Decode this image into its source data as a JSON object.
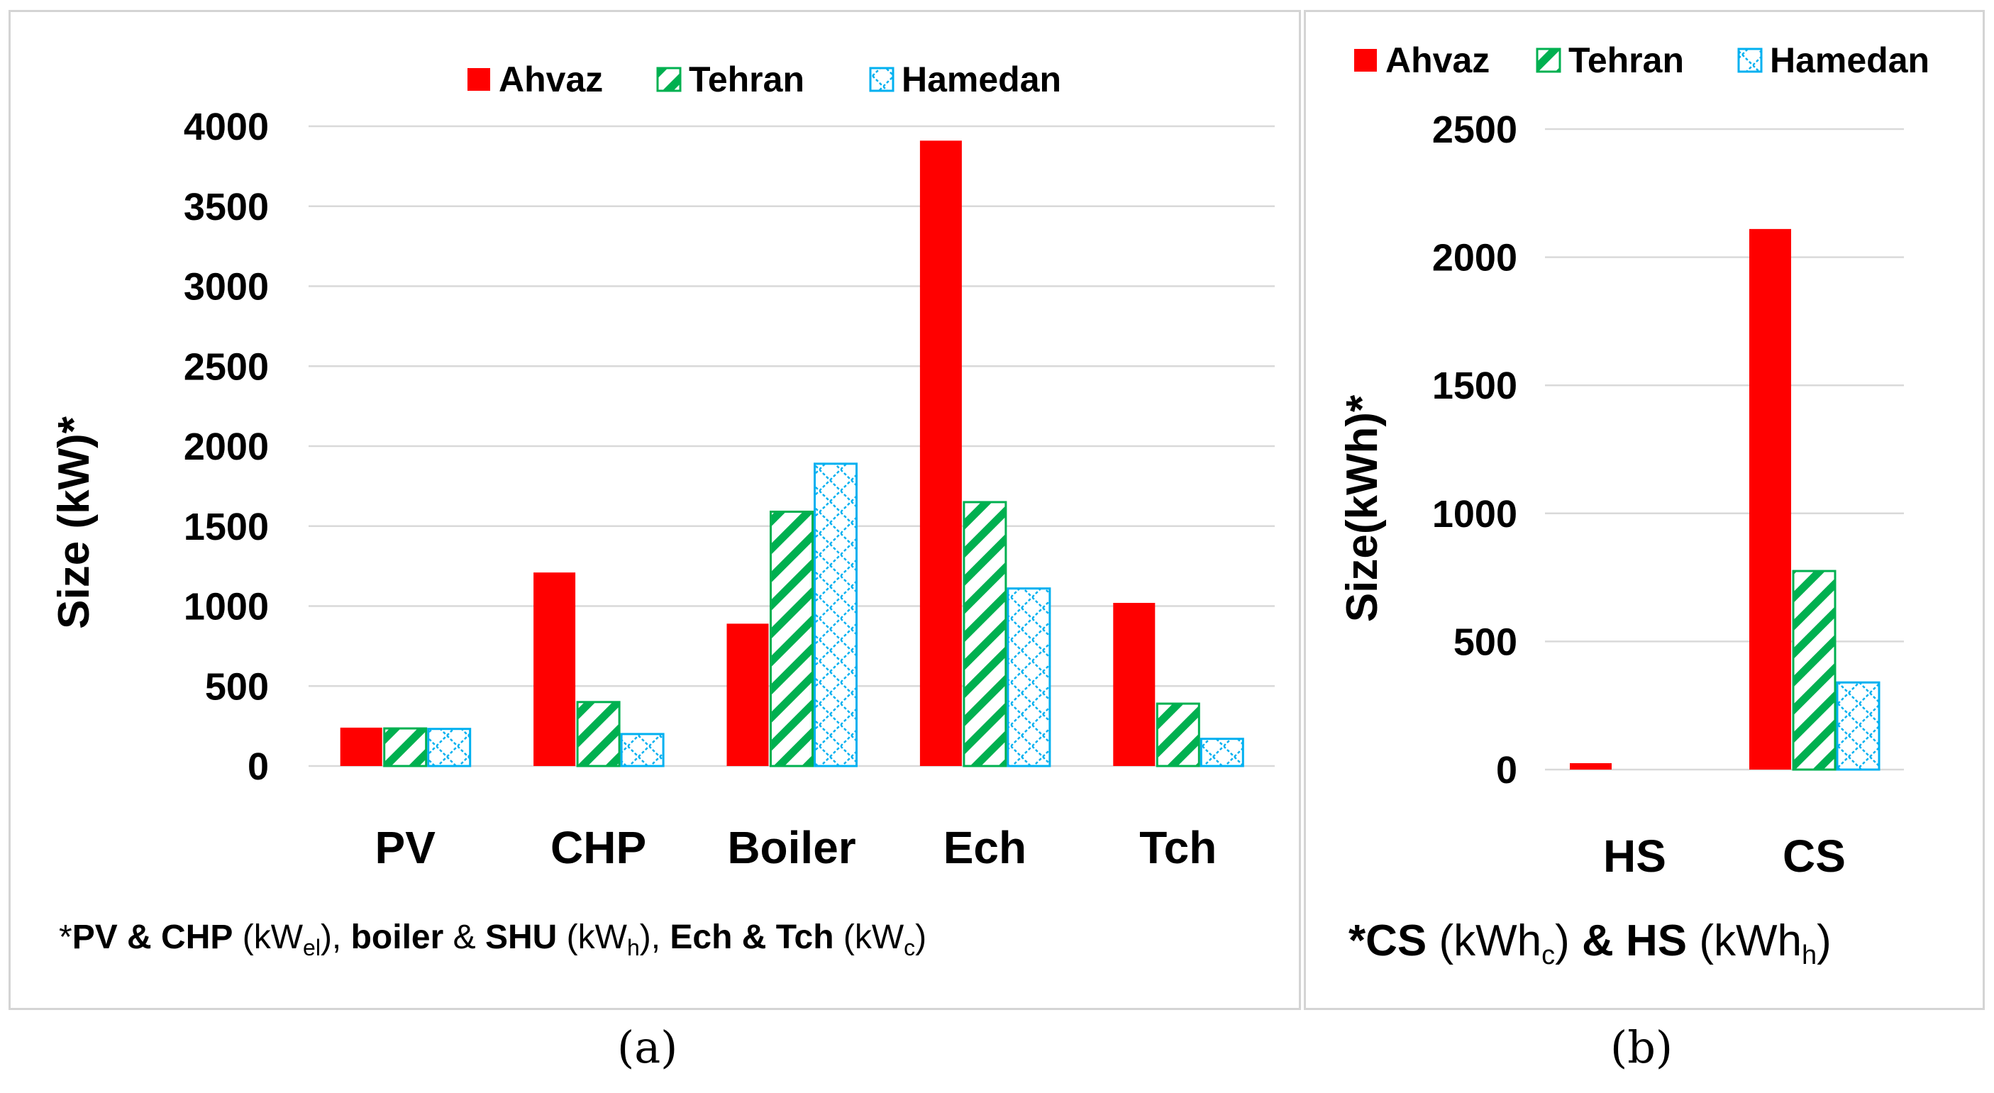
{
  "chart_data": [
    {
      "id": "a",
      "type": "bar",
      "categories": [
        "PV",
        "CHP",
        "Boiler",
        "Ech",
        "Tch"
      ],
      "series": [
        {
          "name": "Ahvaz",
          "values": [
            240,
            1210,
            890,
            3910,
            1020
          ]
        },
        {
          "name": "Tehran",
          "values": [
            235,
            400,
            1590,
            1650,
            390
          ]
        },
        {
          "name": "Hamedan",
          "values": [
            232,
            200,
            1890,
            1110,
            170
          ]
        }
      ],
      "ylabel": "Size (kW)*",
      "ylim": [
        0,
        4000
      ],
      "yticks": [
        "0",
        "500",
        "1000",
        "1500",
        "2000",
        "2500",
        "3000",
        "3500",
        "4000"
      ],
      "legend": [
        "Ahvaz",
        "Tehran",
        "Hamedan"
      ],
      "note": {
        "star": "*",
        "pvchp": "PV & CHP",
        "u1a": " (kW",
        "u1sub": "el",
        "u1b": "), ",
        "boiler": "boiler",
        "amp": " & ",
        "shu": "SHU",
        "u2a": " (kW",
        "u2sub": "h",
        "u2b": "), ",
        "echtch": "Ech & Tch",
        "u3a": " (kW",
        "u3sub": "c",
        "u3b": ")"
      },
      "caption": "(a)"
    },
    {
      "id": "b",
      "type": "bar",
      "categories": [
        "HS",
        "CS"
      ],
      "series": [
        {
          "name": "Ahvaz",
          "values": [
            25,
            2110
          ]
        },
        {
          "name": "Tehran",
          "values": [
            0,
            775
          ]
        },
        {
          "name": "Hamedan",
          "values": [
            0,
            340
          ]
        }
      ],
      "ylabel": "Size(kWh)*",
      "ylim": [
        0,
        2500
      ],
      "yticks": [
        "0",
        "500",
        "1000",
        "1500",
        "2000",
        "2500"
      ],
      "legend": [
        "Ahvaz",
        "Tehran",
        "Hamedan"
      ],
      "note": {
        "starcs": "*CS",
        "u1a": " (kWh",
        "u1sub": "c",
        "u1b": ") ",
        "amphs": "& HS",
        "u2a": " (kWh",
        "u2sub": "h",
        "u2b": ")"
      },
      "caption": "(b)"
    }
  ],
  "colors": {
    "ahvaz": "#ff0000",
    "tehran": "#00b050",
    "hamedan": "#00b0f0",
    "grid": "#d9d9d9",
    "border": "#d4d4d4"
  }
}
